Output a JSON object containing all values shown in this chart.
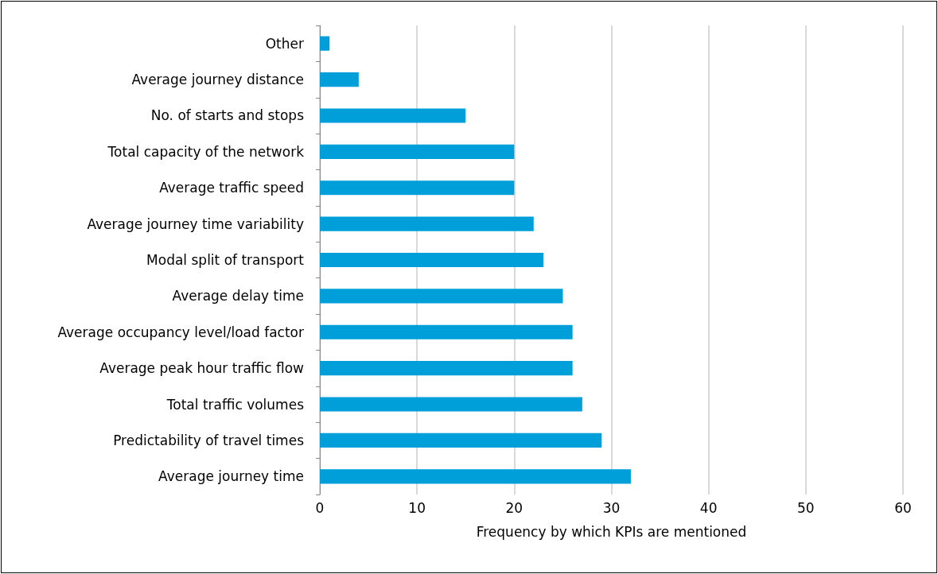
{
  "chart_data": {
    "type": "bar",
    "orientation": "horizontal",
    "xlabel": "Frequency by which KPIs are mentioned",
    "categories": [
      "Other",
      "Average journey distance",
      "No. of starts and stops",
      "Total capacity of the network",
      "Average traffic speed",
      "Average journey time variability",
      "Modal split of transport",
      "Average delay time",
      "Average occupancy level/load factor",
      "Average peak hour traffic flow",
      "Total traffic volumes",
      "Predictability of travel times",
      "Average journey time"
    ],
    "values": [
      1,
      4,
      15,
      20,
      20,
      22,
      23,
      25,
      26,
      26,
      27,
      29,
      32
    ],
    "color": "#009fda",
    "xlim": [
      0,
      60
    ],
    "xticks": [
      0,
      10,
      20,
      30,
      40,
      50,
      60
    ],
    "grid": "x"
  }
}
